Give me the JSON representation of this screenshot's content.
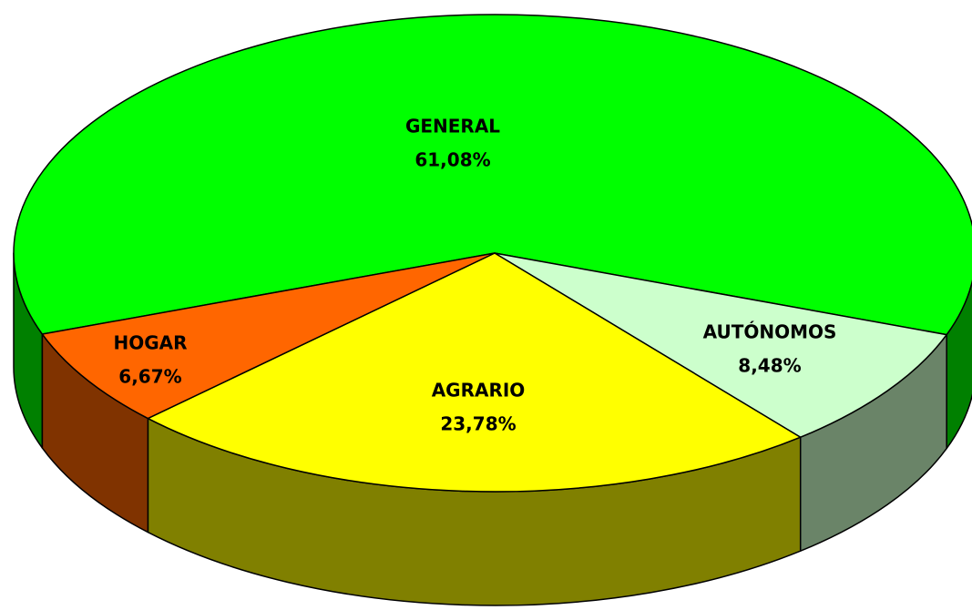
{
  "chart_data": {
    "type": "pie",
    "categories": [
      "GENERAL",
      "AUTÓNOMOS",
      "AGRARIO",
      "HOGAR"
    ],
    "values": [
      61.08,
      8.48,
      23.78,
      6.67
    ],
    "value_labels": [
      "61,08%",
      "8,48%",
      "23,78%",
      "6,67%"
    ],
    "colors": [
      "#00ff00",
      "#ccffcc",
      "#ffff00",
      "#ff6600"
    ],
    "side_colors": [
      "#008000",
      "#6a8468",
      "#808000",
      "#803300"
    ]
  }
}
